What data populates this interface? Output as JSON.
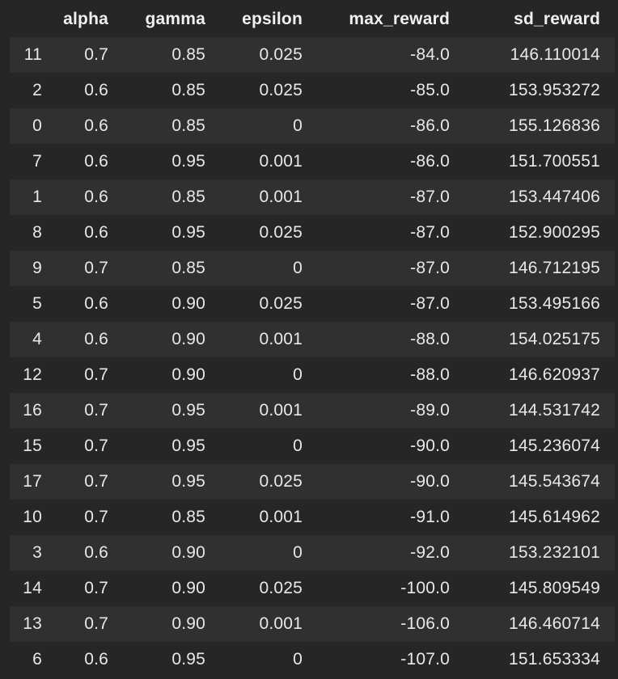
{
  "table": {
    "columns": [
      "",
      "alpha",
      "gamma",
      "epsilon",
      "max_reward",
      "sd_reward"
    ],
    "rows": [
      [
        "11",
        "0.7",
        "0.85",
        "0.025",
        "-84.0",
        "146.110014"
      ],
      [
        "2",
        "0.6",
        "0.85",
        "0.025",
        "-85.0",
        "153.953272"
      ],
      [
        "0",
        "0.6",
        "0.85",
        "0",
        "-86.0",
        "155.126836"
      ],
      [
        "7",
        "0.6",
        "0.95",
        "0.001",
        "-86.0",
        "151.700551"
      ],
      [
        "1",
        "0.6",
        "0.85",
        "0.001",
        "-87.0",
        "153.447406"
      ],
      [
        "8",
        "0.6",
        "0.95",
        "0.025",
        "-87.0",
        "152.900295"
      ],
      [
        "9",
        "0.7",
        "0.85",
        "0",
        "-87.0",
        "146.712195"
      ],
      [
        "5",
        "0.6",
        "0.90",
        "0.025",
        "-87.0",
        "153.495166"
      ],
      [
        "4",
        "0.6",
        "0.90",
        "0.001",
        "-88.0",
        "154.025175"
      ],
      [
        "12",
        "0.7",
        "0.90",
        "0",
        "-88.0",
        "146.620937"
      ],
      [
        "16",
        "0.7",
        "0.95",
        "0.001",
        "-89.0",
        "144.531742"
      ],
      [
        "15",
        "0.7",
        "0.95",
        "0",
        "-90.0",
        "145.236074"
      ],
      [
        "17",
        "0.7",
        "0.95",
        "0.025",
        "-90.0",
        "145.543674"
      ],
      [
        "10",
        "0.7",
        "0.85",
        "0.001",
        "-91.0",
        "145.614962"
      ],
      [
        "3",
        "0.6",
        "0.90",
        "0",
        "-92.0",
        "153.232101"
      ],
      [
        "14",
        "0.7",
        "0.90",
        "0.025",
        "-100.0",
        "145.809549"
      ],
      [
        "13",
        "0.7",
        "0.90",
        "0.001",
        "-106.0",
        "146.460714"
      ],
      [
        "6",
        "0.6",
        "0.95",
        "0",
        "-107.0",
        "151.653334"
      ]
    ]
  },
  "colors": {
    "background": "#262626",
    "row_stripe": "#303030",
    "text": "#e8e8e8"
  }
}
